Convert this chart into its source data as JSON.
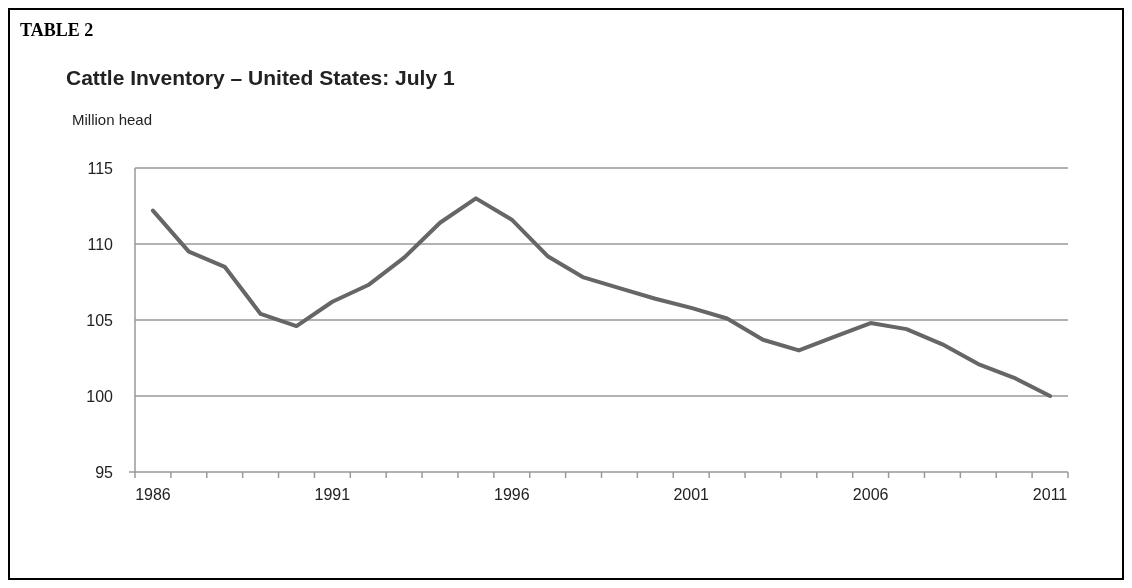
{
  "chart_data": {
    "type": "line",
    "title": "Cattle Inventory – United States: July 1",
    "subtitle": "TABLE 2",
    "ylabel": "Million head",
    "categories": [
      "1986",
      null,
      null,
      null,
      null,
      "1991",
      null,
      null,
      null,
      null,
      "1996",
      null,
      null,
      null,
      null,
      "2001",
      null,
      null,
      null,
      null,
      "2006",
      null,
      null,
      null,
      null,
      "2011"
    ],
    "series": [
      {
        "color": "#666666",
        "values": [
          112.2,
          109.5,
          108.5,
          105.4,
          104.6,
          106.2,
          107.3,
          109.1,
          111.4,
          113.0,
          111.6,
          109.2,
          107.8,
          107.1,
          106.4,
          105.8,
          105.1,
          103.7,
          103.0,
          103.9,
          104.8,
          104.4,
          103.4,
          102.1,
          101.2,
          100.0
        ]
      }
    ],
    "ylim": [
      95,
      115
    ],
    "yticks": [
      95,
      100,
      105,
      110,
      115
    ],
    "grid": "y",
    "marker": "none",
    "line_style": "solid"
  }
}
